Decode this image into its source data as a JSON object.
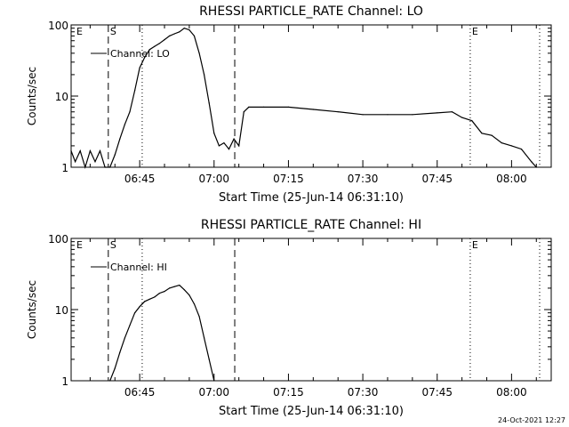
{
  "footer": {
    "timestamp": "24-Oct-2021 12:27"
  },
  "chart_data": [
    {
      "type": "line",
      "title": "RHESSI PARTICLE_RATE Channel: LO",
      "xlabel": "Start Time (25-Jun-14 06:31:10)",
      "ylabel": "Counts/sec",
      "yscale": "log",
      "ylim": [
        1,
        100
      ],
      "xlim": [
        "06:31:10",
        "08:08:00"
      ],
      "x_ticks": [
        "06:45",
        "07:00",
        "07:15",
        "07:30",
        "07:45",
        "08:00"
      ],
      "y_ticks": [
        "1",
        "10",
        "100"
      ],
      "legend": {
        "position": "top-left",
        "entries": [
          "Channel: LO"
        ]
      },
      "markers": [
        {
          "label": "E",
          "time": "06:31:10",
          "style": "none"
        },
        {
          "label": "S",
          "time": "06:38:40",
          "style": "dashed"
        },
        {
          "label": "",
          "time": "06:45:30",
          "style": "dotted"
        },
        {
          "label": "",
          "time": "07:04:10",
          "style": "dashed"
        },
        {
          "label": "E",
          "time": "07:51:40",
          "style": "dotted"
        },
        {
          "label": "",
          "time": "08:05:40",
          "style": "dotted"
        }
      ],
      "series": [
        {
          "name": "Channel: LO",
          "x": [
            "06:31:10",
            "06:32:00",
            "06:33:00",
            "06:34:00",
            "06:35:00",
            "06:36:00",
            "06:37:00",
            "06:38:00",
            "06:39:00",
            "06:40:00",
            "06:41:00",
            "06:42:00",
            "06:43:00",
            "06:44:00",
            "06:45:00",
            "06:46:00",
            "06:47:00",
            "06:48:00",
            "06:49:00",
            "06:50:00",
            "06:51:00",
            "06:52:00",
            "06:53:00",
            "06:54:00",
            "06:55:00",
            "06:56:00",
            "06:57:00",
            "06:58:00",
            "06:59:00",
            "07:00:00",
            "07:01:00",
            "07:02:00",
            "07:03:00",
            "07:04:00",
            "07:05:00",
            "07:06:00",
            "07:07:00",
            "07:10:00",
            "07:15:00",
            "07:20:00",
            "07:25:00",
            "07:30:00",
            "07:35:00",
            "07:40:00",
            "07:45:00",
            "07:48:00",
            "07:50:00",
            "07:52:00",
            "07:54:00",
            "07:56:00",
            "07:58:00",
            "08:00:00",
            "08:02:00",
            "08:04:00",
            "08:05:00"
          ],
          "values": [
            1.7,
            1.2,
            1.7,
            1.0,
            1.7,
            1.2,
            1.7,
            1.0,
            1.0,
            1.5,
            2.5,
            4,
            6,
            12,
            25,
            35,
            45,
            50,
            55,
            62,
            70,
            75,
            80,
            90,
            85,
            70,
            40,
            20,
            8,
            3,
            2,
            2.2,
            1.8,
            2.5,
            2,
            6,
            7,
            7,
            7,
            6.5,
            6,
            5.5,
            5.5,
            5.5,
            5.8,
            6,
            5,
            4.5,
            3,
            2.8,
            2.2,
            2,
            1.8,
            1.2,
            1.0
          ]
        }
      ]
    },
    {
      "type": "line",
      "title": "RHESSI PARTICLE_RATE Channel: HI",
      "xlabel": "Start Time (25-Jun-14 06:31:10)",
      "ylabel": "Counts/sec",
      "yscale": "log",
      "ylim": [
        1,
        100
      ],
      "xlim": [
        "06:31:10",
        "08:08:00"
      ],
      "x_ticks": [
        "06:45",
        "07:00",
        "07:15",
        "07:30",
        "07:45",
        "08:00"
      ],
      "y_ticks": [
        "1",
        "10",
        "100"
      ],
      "legend": {
        "position": "top-left",
        "entries": [
          "Channel: HI"
        ]
      },
      "markers": [
        {
          "label": "E",
          "time": "06:31:10",
          "style": "none"
        },
        {
          "label": "S",
          "time": "06:38:40",
          "style": "dashed"
        },
        {
          "label": "",
          "time": "06:45:30",
          "style": "dotted"
        },
        {
          "label": "",
          "time": "07:04:10",
          "style": "dashed"
        },
        {
          "label": "E",
          "time": "07:51:40",
          "style": "dotted"
        },
        {
          "label": "",
          "time": "08:05:40",
          "style": "dotted"
        }
      ],
      "series": [
        {
          "name": "Channel: HI",
          "x": [
            "06:39:00",
            "06:40:00",
            "06:41:00",
            "06:42:00",
            "06:43:00",
            "06:44:00",
            "06:45:00",
            "06:46:00",
            "06:47:00",
            "06:48:00",
            "06:49:00",
            "06:50:00",
            "06:51:00",
            "06:52:00",
            "06:53:00",
            "06:54:00",
            "06:55:00",
            "06:56:00",
            "06:57:00",
            "06:58:00",
            "06:59:00",
            "07:00:00"
          ],
          "values": [
            1.0,
            1.5,
            2.5,
            4,
            6,
            9,
            11,
            13,
            14,
            15,
            17,
            18,
            20,
            21,
            22,
            19,
            16,
            12,
            8,
            4,
            2,
            1.0
          ]
        }
      ]
    }
  ]
}
